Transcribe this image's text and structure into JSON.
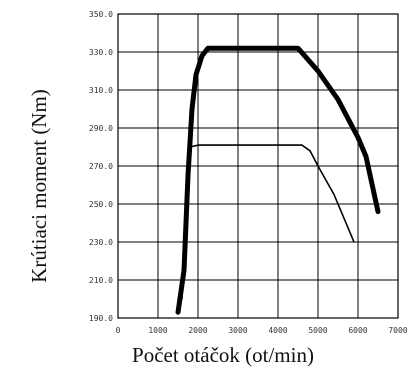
{
  "chart_data": {
    "type": "line",
    "title": "",
    "xlabel": "Počet otáčok (ot/min)",
    "ylabel": "Krútiaci moment (Nm)",
    "xlim": [
      0,
      7000
    ],
    "ylim": [
      190,
      350
    ],
    "x_ticks": [
      0,
      1000,
      2000,
      3000,
      4000,
      5000,
      6000,
      7000
    ],
    "x_tick_labels": [
      "0",
      "1000",
      "2000",
      "3000",
      "4000",
      "5000",
      "6000",
      "7000"
    ],
    "y_ticks": [
      190,
      210,
      230,
      250,
      270,
      290,
      310,
      330,
      350
    ],
    "y_tick_labels": [
      "190.0",
      "210.0",
      "230.0",
      "250.0",
      "270.0",
      "290.0",
      "310.0",
      "330.0",
      "350.0"
    ],
    "grid": true,
    "legend": "none",
    "series": [
      {
        "color": "#000000",
        "line_style": "thick",
        "x": [
          1500,
          1650,
          1750,
          1850,
          1950,
          2100,
          2250,
          2500,
          3500,
          4500,
          5000,
          5500,
          6000,
          6200,
          6500
        ],
        "y": [
          193,
          215,
          265,
          300,
          318,
          328,
          332,
          332,
          332,
          332,
          320,
          305,
          285,
          275,
          246
        ]
      },
      {
        "color": "#000000",
        "line_style": "thin",
        "x": [
          1600,
          1700,
          1800,
          2000,
          3000,
          4000,
          4600,
          4800,
          5000,
          5400,
          5900
        ],
        "y": [
          200,
          255,
          280,
          281,
          281,
          281,
          281,
          278,
          270,
          255,
          230
        ]
      }
    ]
  }
}
